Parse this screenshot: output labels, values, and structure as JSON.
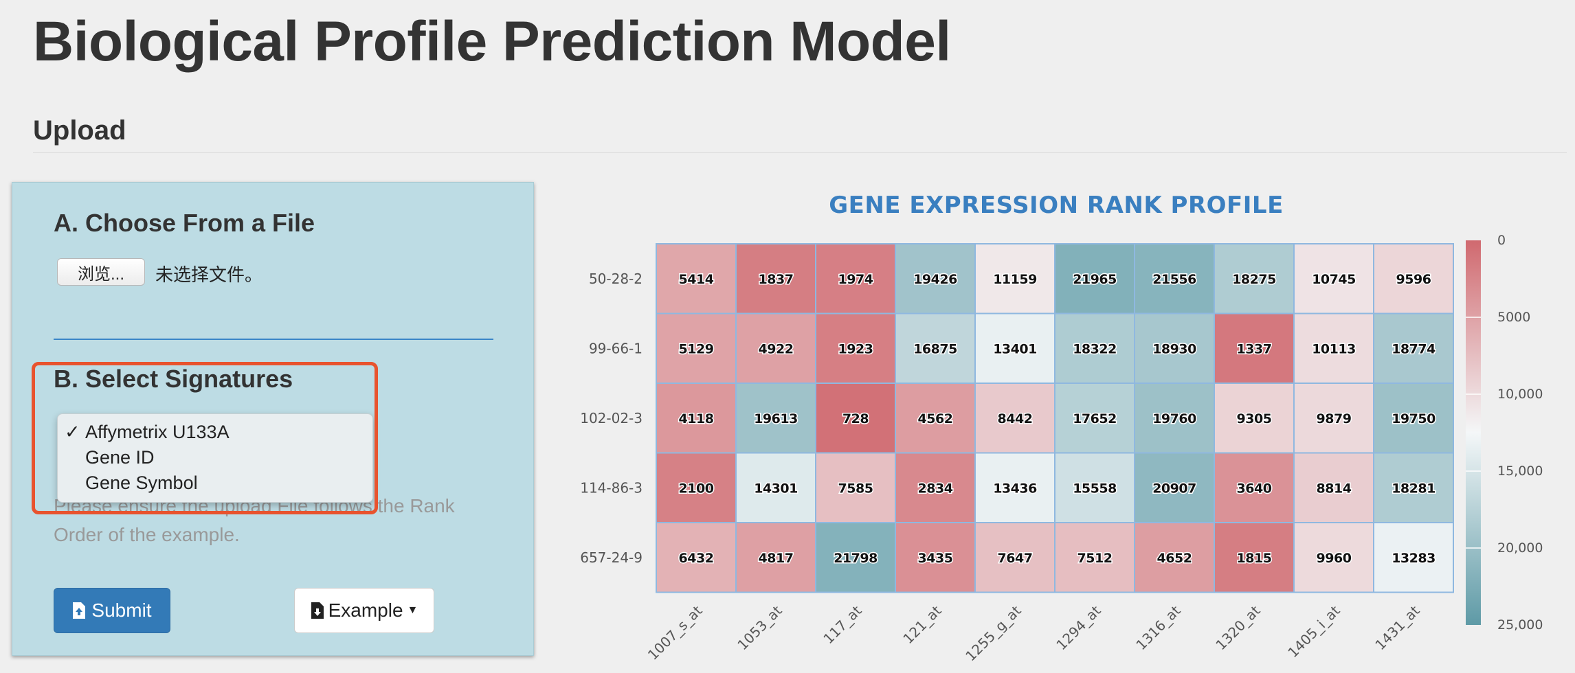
{
  "page": {
    "title": "Biological Profile Prediction Model",
    "section": "Upload"
  },
  "upload_panel": {
    "file_heading": "A. Choose From a File",
    "browse_label": "浏览...",
    "no_file_text": "未选择文件。",
    "signature_heading": "B. Select Signatures",
    "signature_options": [
      {
        "label": "Affymetrix U133A",
        "selected": true
      },
      {
        "label": "Gene ID",
        "selected": false
      },
      {
        "label": "Gene Symbol",
        "selected": false
      }
    ],
    "check_mark": "✓",
    "hint": "Please ensure the upload File follows the Rank Order of the example.",
    "submit_label": "Submit",
    "example_label": "Example"
  },
  "icons": {
    "submit": "file-upload-icon",
    "example": "file-download-icon",
    "caret": "caret-down-icon"
  },
  "colors": {
    "panel_bg": "#bddce4",
    "highlight": "#e8532e",
    "primary": "#337ab7",
    "title_blue": "#3a7fc0",
    "low_rank": "#d0696f",
    "mid_rank": "#f4f7f8",
    "high_rank": "#5e9aa6"
  },
  "chart_data": {
    "type": "heatmap",
    "title": "GENE EXPRESSION RANK PROFILE",
    "rows": [
      "50-28-2",
      "99-66-1",
      "102-02-3",
      "114-86-3",
      "657-24-9"
    ],
    "columns": [
      "1007_s_at",
      "1053_at",
      "117_at",
      "121_at",
      "1255_g_at",
      "1294_at",
      "1316_at",
      "1320_at",
      "1405_i_at",
      "1431_at"
    ],
    "values": [
      [
        5414,
        1837,
        1974,
        19426,
        11159,
        21965,
        21556,
        18275,
        10745,
        9596
      ],
      [
        5129,
        4922,
        1923,
        16875,
        13401,
        18322,
        18930,
        1337,
        10113,
        18774
      ],
      [
        4118,
        19613,
        728,
        4562,
        8442,
        17652,
        19760,
        9305,
        9879,
        19750
      ],
      [
        2100,
        14301,
        7585,
        2834,
        13436,
        15558,
        20907,
        3640,
        8814,
        18281
      ],
      [
        6432,
        4817,
        21798,
        3435,
        7647,
        7512,
        4652,
        1815,
        9960,
        13283
      ]
    ],
    "color_scale": {
      "min": 0,
      "max": 25000,
      "ticks": [
        "0",
        "5000",
        "10,000",
        "15,000",
        "20,000",
        "25,000"
      ]
    }
  }
}
